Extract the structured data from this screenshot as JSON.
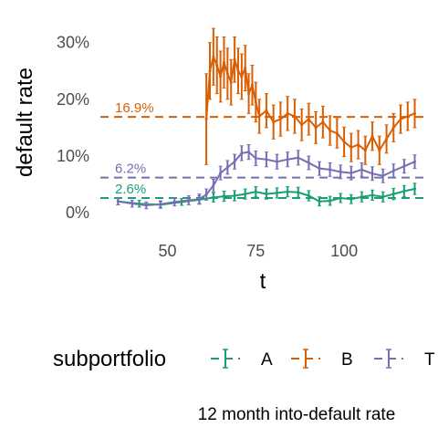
{
  "chart_data": {
    "type": "line",
    "caption": "12 month into-default rate",
    "xlabel": "t",
    "ylabel": "default rate",
    "xlim": [
      31,
      124
    ],
    "ylim": [
      -4,
      33
    ],
    "x_ticks": [
      50,
      75,
      100
    ],
    "y_ticks": [
      {
        "value": 0,
        "label": "0%"
      },
      {
        "value": 10,
        "label": "10%"
      },
      {
        "value": 20,
        "label": "20%"
      },
      {
        "value": 30,
        "label": "30%"
      }
    ],
    "grid": false,
    "legend": {
      "position": "bottom",
      "title": "subportfolio"
    },
    "error_bars": true,
    "reference_lines": [
      {
        "series": "B",
        "value": 16.9,
        "label": "16.9%"
      },
      {
        "series": "T",
        "value": 6.2,
        "label": "6.2%"
      },
      {
        "series": "A",
        "value": 2.6,
        "label": "2.6%"
      }
    ],
    "series": [
      {
        "name": "A",
        "color": "#1b9e77",
        "x": [
          36,
          42,
          48,
          54,
          59,
          63,
          66,
          69,
          72,
          75,
          78,
          81,
          84,
          87,
          90,
          93,
          96,
          99,
          102,
          105,
          108,
          111,
          114,
          117,
          120
        ],
        "y": [
          2.0,
          1.6,
          1.4,
          1.9,
          2.3,
          2.7,
          2.9,
          3.0,
          3.3,
          3.7,
          3.3,
          3.5,
          3.7,
          3.6,
          3.0,
          2.0,
          2.1,
          2.6,
          2.4,
          2.8,
          3.1,
          2.8,
          3.3,
          3.8,
          4.2
        ],
        "err": [
          0.6,
          0.6,
          0.6,
          0.6,
          0.7,
          0.8,
          0.9,
          0.9,
          0.9,
          0.9,
          0.9,
          0.9,
          0.9,
          0.9,
          0.9,
          0.8,
          0.8,
          0.8,
          0.8,
          0.9,
          0.9,
          0.9,
          1.0,
          1.0,
          1.0
        ]
      },
      {
        "name": "B",
        "color": "#d95f02",
        "x": [
          61,
          62,
          63,
          64,
          65,
          66,
          67,
          68,
          69,
          70,
          71,
          72,
          73,
          74,
          75,
          76,
          78,
          80,
          82,
          84,
          86,
          88,
          90,
          92,
          94,
          96,
          98,
          100,
          102,
          104,
          106,
          108,
          110,
          112,
          114,
          116,
          118,
          120
        ],
        "y": [
          16.5,
          25.0,
          27.5,
          26.0,
          24.0,
          26.5,
          24.5,
          23.0,
          27.0,
          25.0,
          24.0,
          25.5,
          21.0,
          22.5,
          19.5,
          17.0,
          18.0,
          16.0,
          16.5,
          17.5,
          17.0,
          15.5,
          16.5,
          15.0,
          16.0,
          14.5,
          14.0,
          12.5,
          11.5,
          12.0,
          11.0,
          13.5,
          11.0,
          13.0,
          15.0,
          16.5,
          17.0,
          17.5
        ],
        "err": [
          8.0,
          5.0,
          5.0,
          5.0,
          4.5,
          4.5,
          4.5,
          4.0,
          4.0,
          4.0,
          4.0,
          4.0,
          3.5,
          3.5,
          3.5,
          3.0,
          3.0,
          3.0,
          3.0,
          3.0,
          3.0,
          2.8,
          2.8,
          2.8,
          2.8,
          2.6,
          2.6,
          2.6,
          2.5,
          2.5,
          2.5,
          2.5,
          2.5,
          2.5,
          2.5,
          2.5,
          2.5,
          2.5
        ]
      },
      {
        "name": "T",
        "color": "#7570b3",
        "x": [
          36,
          40,
          44,
          48,
          52,
          56,
          59,
          61,
          63,
          65,
          67,
          69,
          71,
          73,
          75,
          78,
          81,
          84,
          87,
          90,
          93,
          96,
          99,
          102,
          105,
          108,
          111,
          114,
          117,
          120
        ],
        "y": [
          2.0,
          1.6,
          1.3,
          1.5,
          1.9,
          2.2,
          2.4,
          3.2,
          4.8,
          7.0,
          8.0,
          9.0,
          10.5,
          10.7,
          9.6,
          9.4,
          9.0,
          9.4,
          9.7,
          8.8,
          7.8,
          7.6,
          7.2,
          7.0,
          7.6,
          6.9,
          6.5,
          7.4,
          8.2,
          9.0
        ],
        "err": [
          0.6,
          0.6,
          0.6,
          0.6,
          0.7,
          0.8,
          0.9,
          1.0,
          1.1,
          1.2,
          1.2,
          1.3,
          1.3,
          1.3,
          1.3,
          1.3,
          1.3,
          1.3,
          1.3,
          1.2,
          1.2,
          1.2,
          1.2,
          1.2,
          1.2,
          1.2,
          1.2,
          1.2,
          1.2,
          1.2
        ]
      }
    ]
  }
}
